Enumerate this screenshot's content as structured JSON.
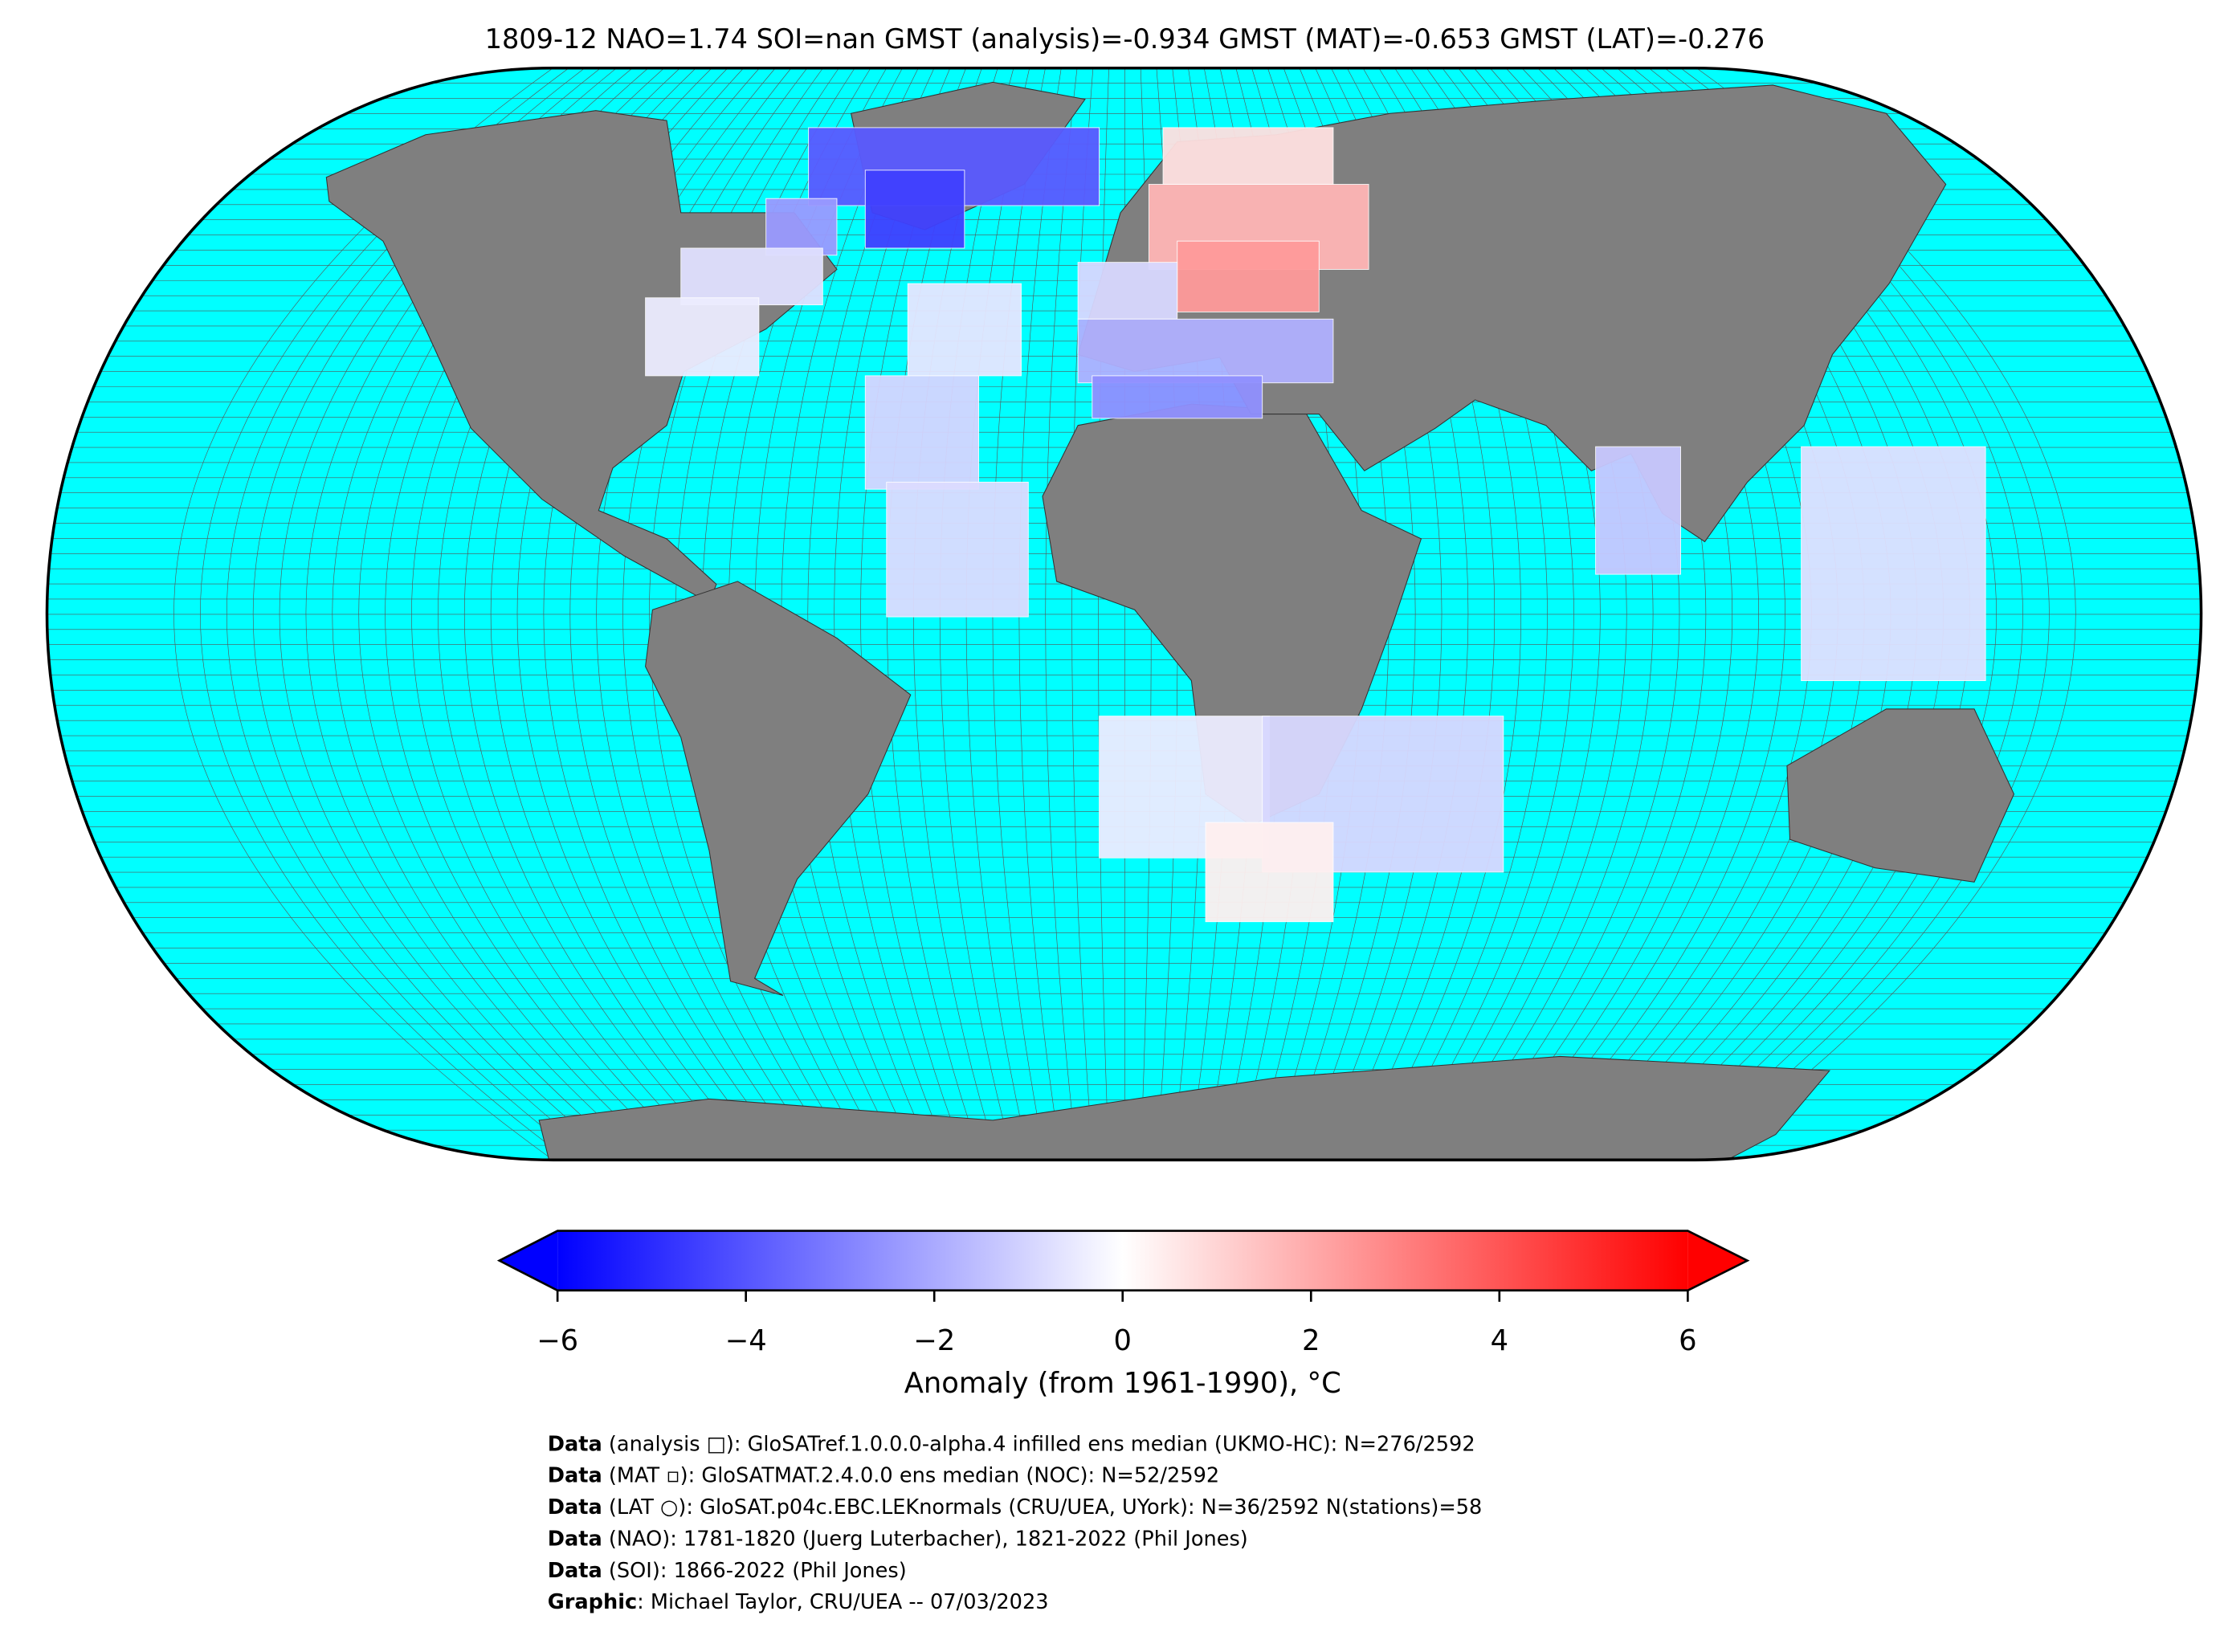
{
  "title": "1809-12 NAO=1.74 SOI=nan GMST (analysis)=-0.934 GMST (MAT)=-0.653 GMST (LAT)=-0.276",
  "colorbar": {
    "label": "Anomaly (from 1961-1990), °C",
    "lim": [
      -6,
      6
    ],
    "ticks": [
      {
        "value": -6,
        "label": "−6"
      },
      {
        "value": -4,
        "label": "−4"
      },
      {
        "value": -2,
        "label": "−2"
      },
      0,
      2,
      4,
      6
    ],
    "colors": [
      "#0000ff",
      "#ffffff",
      "#ff0000"
    ],
    "extend": "both"
  },
  "footer": [
    {
      "label": "Data",
      "text": " (analysis □): GloSATref.1.0.0.0-alpha.4 infilled ens median (UKMO-HC): N=276/2592"
    },
    {
      "label": "Data",
      "text": " (MAT ▫): GloSATMAT.2.4.0.0 ens median (NOC): N=52/2592"
    },
    {
      "label": "Data",
      "text": " (LAT ○): GloSAT.p04c.EBC.LEKnormals (CRU/UEA, UYork): N=36/2592 N(stations)=58"
    },
    {
      "label": "Data",
      "text": " (NAO): 1781-1820 (Juerg Luterbacher), 1821-2022 (Phil Jones)"
    },
    {
      "label": "Data",
      "text": " (SOI): 1866-2022 (Phil Jones)"
    },
    {
      "label": "Graphic",
      "text": ": Michael Taylor, CRU/UEA -- 07/03/2023"
    }
  ]
}
